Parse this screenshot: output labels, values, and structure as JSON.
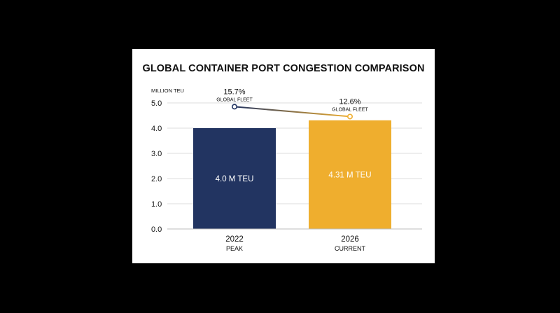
{
  "chart_data": {
    "type": "bar",
    "title": "GLOBAL CONTAINER PORT CONGESTION COMPARISON",
    "ylabel": "MILLION TEU",
    "ylim": [
      0,
      5
    ],
    "yticks": [
      "0.0",
      "1.0",
      "2.0",
      "3.0",
      "4.0",
      "5.0"
    ],
    "grid": true,
    "categories": [
      "2022",
      "2026"
    ],
    "category_sublabels": [
      "PEAK",
      "CURRENT"
    ],
    "values": [
      4.0,
      4.31
    ],
    "value_labels": [
      "4.0 M TEU",
      "4.31 M TEU"
    ],
    "bar_colors": [
      "#223461",
      "#EFAE2E"
    ],
    "annotations": [
      {
        "pct": "15.7%",
        "label": "GLOBAL FLEET",
        "y": 4.85
      },
      {
        "pct": "12.6%",
        "label": "GLOBAL FLEET",
        "y": 4.46
      }
    ],
    "line_colors": [
      "#223461",
      "#EFAE2E"
    ]
  }
}
